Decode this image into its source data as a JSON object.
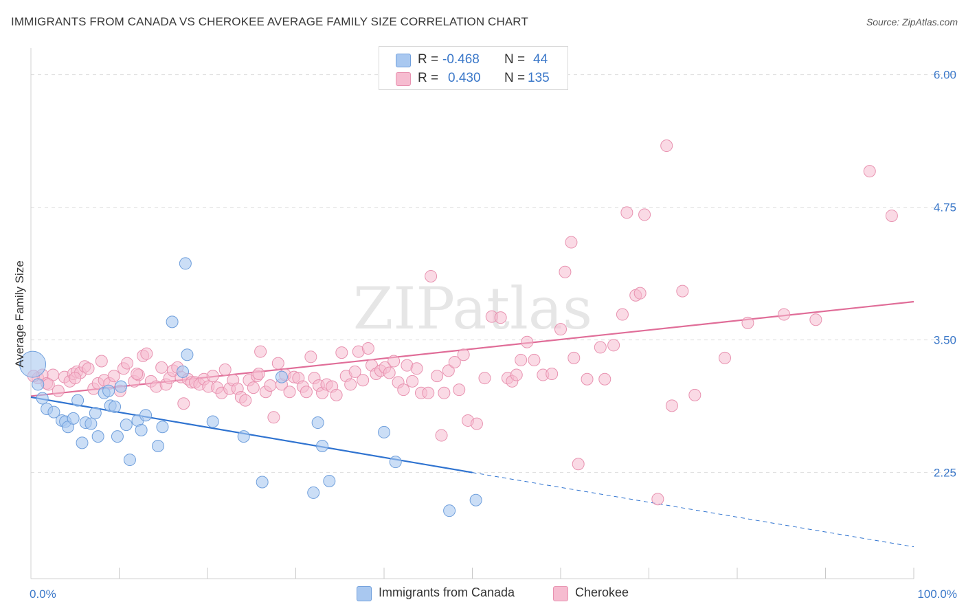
{
  "title": "IMMIGRANTS FROM CANADA VS CHEROKEE AVERAGE FAMILY SIZE CORRELATION CHART",
  "source": "Source: ZipAtlas.com",
  "watermark": "ZIPatlas",
  "legend": {
    "rows": [
      {
        "r_label": "R =",
        "r_value": "-0.468",
        "n_label": "N =",
        "n_value": "44"
      },
      {
        "r_label": "R =",
        "r_value": "0.430",
        "n_label": "N =",
        "n_value": "135"
      }
    ]
  },
  "bottom_legend": [
    "Immigrants from Canada",
    "Cherokee"
  ],
  "colors": {
    "blue_fill": "#a9c8f0",
    "blue_stroke": "#6f9fdc",
    "blue_line": "#2f73d0",
    "pink_fill": "#f6bcd0",
    "pink_stroke": "#e892b0",
    "pink_line": "#e06d98",
    "grid": "#dddddd",
    "tick_text": "#3b78c9"
  },
  "chart_data": {
    "type": "scatter",
    "title": "IMMIGRANTS FROM CANADA VS CHEROKEE AVERAGE FAMILY SIZE CORRELATION CHART",
    "xlabel": "",
    "ylabel": "Average Family Size",
    "xlim": [
      0,
      100
    ],
    "ylim": [
      1.25,
      6.25
    ],
    "x_tick_labels": [
      "0.0%",
      "100.0%"
    ],
    "y_ticks": [
      2.25,
      3.5,
      4.75,
      6.0
    ],
    "y_tick_labels": [
      "2.25",
      "3.50",
      "4.75",
      "6.00"
    ],
    "grid": "horizontal dashed",
    "legend_position": "top-center",
    "series": [
      {
        "name": "Immigrants from Canada",
        "color": "#a9c8f0",
        "r": -0.468,
        "n": 44,
        "trend": {
          "x0": 0,
          "y0": 2.96,
          "x1": 50,
          "y1": 2.25,
          "dashed_to_x": 100,
          "dashed_to_y": 1.55
        },
        "points": [
          [
            0.2,
            3.27
          ],
          [
            0.8,
            3.08
          ],
          [
            1.3,
            2.95
          ],
          [
            1.8,
            2.85
          ],
          [
            2.6,
            2.82
          ],
          [
            3.5,
            2.74
          ],
          [
            3.9,
            2.73
          ],
          [
            4.2,
            2.68
          ],
          [
            4.8,
            2.76
          ],
          [
            5.3,
            2.93
          ],
          [
            5.8,
            2.53
          ],
          [
            6.2,
            2.72
          ],
          [
            6.8,
            2.71
          ],
          [
            7.3,
            2.81
          ],
          [
            7.6,
            2.59
          ],
          [
            8.3,
            3.0
          ],
          [
            8.8,
            3.02
          ],
          [
            9.0,
            2.88
          ],
          [
            9.5,
            2.87
          ],
          [
            9.8,
            2.59
          ],
          [
            10.2,
            3.06
          ],
          [
            10.8,
            2.7
          ],
          [
            11.2,
            2.37
          ],
          [
            12.1,
            2.74
          ],
          [
            12.5,
            2.65
          ],
          [
            13.0,
            2.79
          ],
          [
            14.4,
            2.5
          ],
          [
            14.9,
            2.68
          ],
          [
            16.0,
            3.67
          ],
          [
            17.2,
            3.2
          ],
          [
            17.5,
            4.22
          ],
          [
            17.7,
            3.36
          ],
          [
            20.6,
            2.73
          ],
          [
            24.1,
            2.59
          ],
          [
            26.2,
            2.16
          ],
          [
            28.4,
            3.15
          ],
          [
            32.0,
            2.06
          ],
          [
            32.5,
            2.72
          ],
          [
            33.0,
            2.5
          ],
          [
            33.8,
            2.17
          ],
          [
            40.0,
            2.63
          ],
          [
            41.3,
            2.35
          ],
          [
            47.4,
            1.89
          ],
          [
            50.4,
            1.99
          ]
        ]
      },
      {
        "name": "Cherokee",
        "color": "#f6bcd0",
        "r": 0.43,
        "n": 135,
        "trend": {
          "x0": 0,
          "y0": 2.97,
          "x1": 100,
          "y1": 3.86
        },
        "points": [
          [
            0.8,
            3.14
          ],
          [
            1.3,
            3.17
          ],
          [
            1.8,
            3.09
          ],
          [
            2.5,
            3.17
          ],
          [
            3.1,
            3.02
          ],
          [
            3.8,
            3.15
          ],
          [
            4.4,
            3.11
          ],
          [
            4.8,
            3.18
          ],
          [
            5.2,
            3.2
          ],
          [
            5.6,
            3.19
          ],
          [
            6.1,
            3.25
          ],
          [
            6.5,
            3.23
          ],
          [
            7.1,
            3.04
          ],
          [
            7.6,
            3.09
          ],
          [
            8.0,
            3.3
          ],
          [
            8.3,
            3.12
          ],
          [
            8.9,
            3.09
          ],
          [
            9.4,
            3.16
          ],
          [
            10.1,
            3.02
          ],
          [
            10.5,
            3.23
          ],
          [
            10.9,
            3.28
          ],
          [
            11.7,
            3.11
          ],
          [
            12.2,
            3.17
          ],
          [
            12.7,
            3.35
          ],
          [
            13.1,
            3.37
          ],
          [
            13.6,
            3.11
          ],
          [
            14.2,
            3.06
          ],
          [
            14.8,
            3.24
          ],
          [
            15.3,
            3.08
          ],
          [
            15.7,
            3.14
          ],
          [
            16.1,
            3.21
          ],
          [
            16.6,
            3.24
          ],
          [
            17.0,
            3.15
          ],
          [
            17.3,
            2.9
          ],
          [
            17.8,
            3.13
          ],
          [
            18.2,
            3.1
          ],
          [
            18.6,
            3.1
          ],
          [
            19.1,
            3.08
          ],
          [
            19.6,
            3.13
          ],
          [
            20.1,
            3.06
          ],
          [
            20.6,
            3.16
          ],
          [
            21.1,
            3.05
          ],
          [
            21.6,
            3.0
          ],
          [
            22.0,
            3.22
          ],
          [
            22.5,
            3.04
          ],
          [
            22.9,
            3.12
          ],
          [
            23.4,
            3.04
          ],
          [
            23.8,
            2.96
          ],
          [
            24.3,
            2.93
          ],
          [
            24.7,
            3.12
          ],
          [
            25.2,
            3.05
          ],
          [
            25.6,
            3.16
          ],
          [
            26.0,
            3.39
          ],
          [
            26.6,
            3.01
          ],
          [
            27.1,
            3.07
          ],
          [
            27.5,
            2.77
          ],
          [
            28.0,
            3.28
          ],
          [
            28.4,
            3.08
          ],
          [
            28.8,
            3.17
          ],
          [
            29.3,
            3.01
          ],
          [
            29.8,
            3.15
          ],
          [
            30.3,
            3.14
          ],
          [
            30.8,
            3.06
          ],
          [
            31.2,
            3.01
          ],
          [
            31.7,
            3.34
          ],
          [
            32.1,
            3.14
          ],
          [
            32.6,
            3.07
          ],
          [
            33.0,
            3.0
          ],
          [
            33.5,
            3.08
          ],
          [
            34.1,
            3.06
          ],
          [
            34.6,
            2.98
          ],
          [
            35.2,
            3.38
          ],
          [
            35.7,
            3.16
          ],
          [
            36.2,
            3.08
          ],
          [
            36.7,
            3.2
          ],
          [
            37.1,
            3.39
          ],
          [
            37.6,
            3.12
          ],
          [
            38.2,
            3.42
          ],
          [
            38.6,
            3.26
          ],
          [
            39.1,
            3.18
          ],
          [
            39.6,
            3.21
          ],
          [
            40.1,
            3.24
          ],
          [
            40.6,
            3.19
          ],
          [
            41.1,
            3.3
          ],
          [
            41.6,
            3.1
          ],
          [
            42.2,
            3.03
          ],
          [
            42.6,
            3.26
          ],
          [
            43.2,
            3.11
          ],
          [
            43.7,
            3.23
          ],
          [
            44.2,
            3.0
          ],
          [
            45.0,
            3.0
          ],
          [
            45.3,
            4.1
          ],
          [
            46.0,
            3.16
          ],
          [
            46.5,
            2.6
          ],
          [
            46.8,
            3.0
          ],
          [
            47.3,
            3.21
          ],
          [
            48.0,
            3.29
          ],
          [
            48.5,
            3.03
          ],
          [
            49.0,
            3.36
          ],
          [
            49.5,
            2.74
          ],
          [
            50.5,
            2.71
          ],
          [
            51.4,
            3.14
          ],
          [
            52.2,
            3.72
          ],
          [
            53.2,
            3.71
          ],
          [
            54.0,
            3.14
          ],
          [
            54.5,
            3.11
          ],
          [
            55.0,
            3.17
          ],
          [
            55.5,
            3.31
          ],
          [
            56.2,
            3.48
          ],
          [
            57.0,
            3.31
          ],
          [
            58.0,
            3.17
          ],
          [
            59.0,
            3.18
          ],
          [
            60.0,
            3.6
          ],
          [
            60.5,
            4.14
          ],
          [
            61.2,
            4.42
          ],
          [
            61.5,
            3.33
          ],
          [
            62.0,
            2.33
          ],
          [
            63.0,
            3.13
          ],
          [
            64.5,
            3.43
          ],
          [
            65.0,
            3.13
          ],
          [
            66.0,
            3.45
          ],
          [
            67.0,
            3.74
          ],
          [
            67.5,
            4.7
          ],
          [
            68.5,
            3.92
          ],
          [
            69.0,
            3.94
          ],
          [
            69.5,
            4.68
          ],
          [
            71.0,
            2.0
          ],
          [
            72.0,
            5.33
          ],
          [
            72.6,
            2.88
          ],
          [
            73.8,
            3.96
          ],
          [
            75.2,
            2.98
          ],
          [
            78.6,
            3.33
          ],
          [
            81.2,
            3.66
          ],
          [
            85.3,
            3.74
          ],
          [
            88.9,
            3.69
          ],
          [
            95.0,
            5.09
          ],
          [
            97.5,
            4.67
          ],
          [
            0.3,
            3.16
          ],
          [
            2.0,
            3.08
          ],
          [
            12.0,
            3.18
          ],
          [
            5.0,
            3.14
          ],
          [
            25.8,
            3.18
          ]
        ]
      }
    ]
  }
}
